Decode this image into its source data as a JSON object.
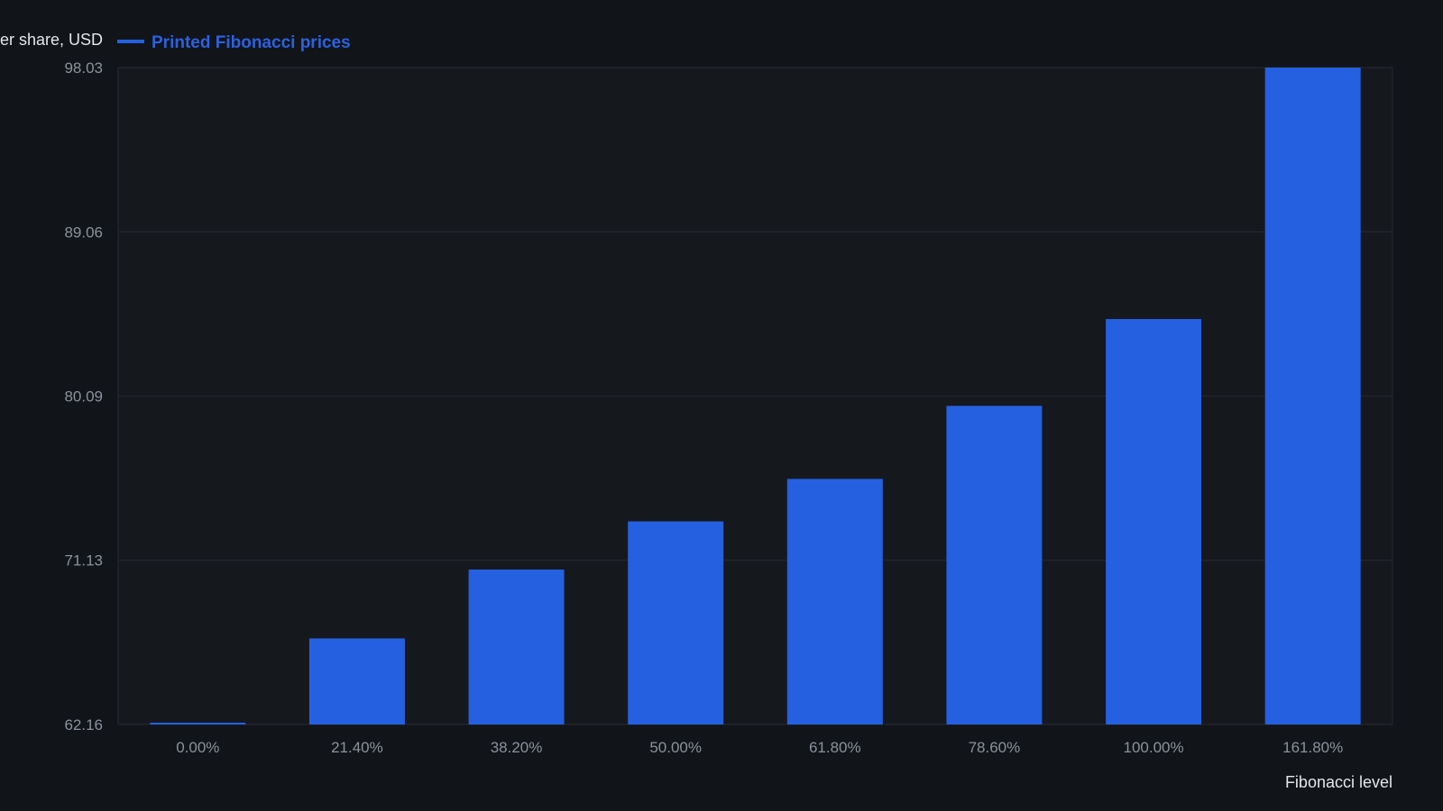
{
  "chart_data": {
    "type": "bar",
    "xlabel": "Fibonacci level",
    "ylabel": "er share, USD",
    "categories": [
      "0.00%",
      "21.40%",
      "38.20%",
      "50.00%",
      "61.80%",
      "78.60%",
      "100.00%",
      "161.80%"
    ],
    "series": [
      {
        "name": "Printed Fibonacci prices",
        "values": [
          62.16,
          66.86,
          70.62,
          73.25,
          75.57,
          79.56,
          84.3,
          98.03
        ]
      }
    ],
    "yticks": [
      "62.16",
      "71.13",
      "80.09",
      "89.06",
      "98.03"
    ],
    "ylim": [
      62.16,
      98.03
    ],
    "grid": true,
    "legend_position": "top-left",
    "colors": {
      "background": "#111419",
      "plot_background": "#15181d",
      "bar": "#2560e0",
      "grid": "#262a31",
      "tick_text": "#8b929c",
      "title_text": "#e4e6ea",
      "legend_text": "#2c62e0"
    }
  }
}
